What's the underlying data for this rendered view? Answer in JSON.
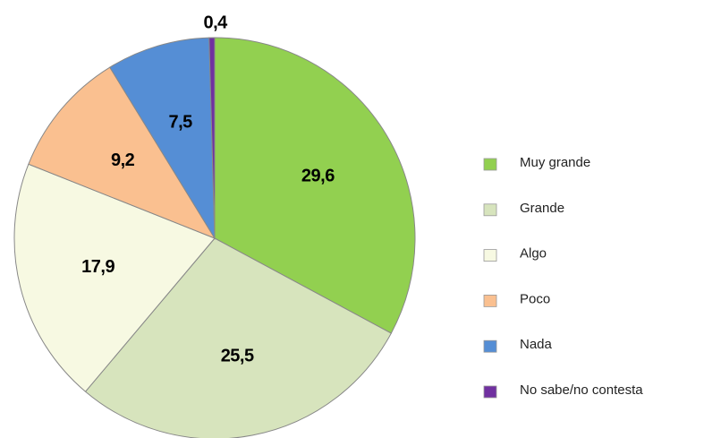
{
  "chart_data": {
    "type": "pie",
    "categories": [
      "Muy grande",
      "Grande",
      "Algo",
      "Poco",
      "Nada",
      "No sabe/no contesta"
    ],
    "values": [
      29.6,
      25.5,
      17.9,
      9.2,
      7.5,
      0.4
    ],
    "value_labels": [
      "29,6",
      "25,5",
      "17,9",
      "9,2",
      "7,5",
      "0,4"
    ],
    "colors": [
      "#92d050",
      "#d7e4bd",
      "#f7f9e2",
      "#fac090",
      "#558ed5",
      "#7030a0"
    ],
    "legend": "right"
  }
}
